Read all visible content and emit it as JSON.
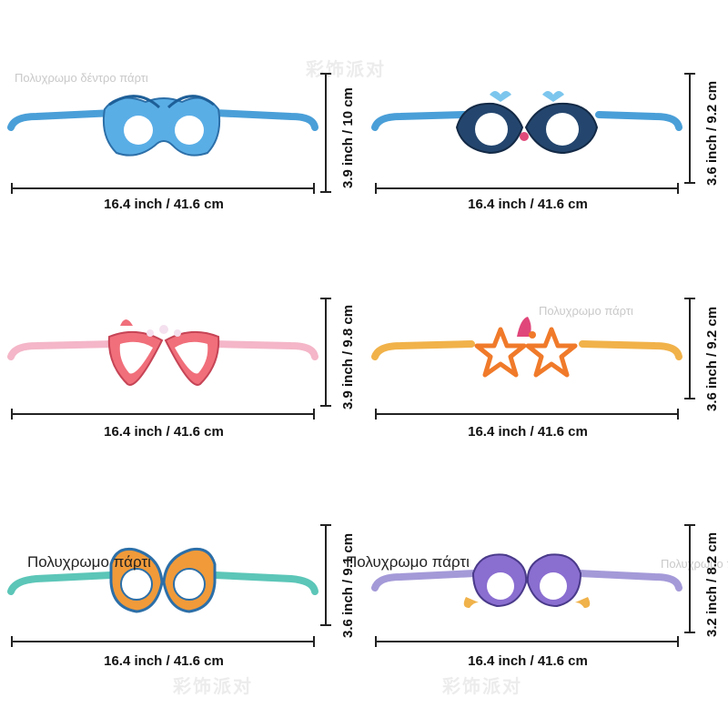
{
  "watermarks": {
    "party_tree": "Πολυχρωμο δέντρο πάρτι",
    "party": "Πολυχρωμο πάρτι",
    "brand": "彩饰派对"
  },
  "overlay_captions": [
    "Πολυχρωμο πάρτι",
    "Πολυχρωμο πάρτι"
  ],
  "items": [
    {
      "name": "dolphin-glasses",
      "width": "16.4 inch / 41.6 cm",
      "height": "3.9 inch / 10 cm",
      "color": "#4a9fd8"
    },
    {
      "name": "whale-glasses",
      "width": "16.4 inch / 41.6 cm",
      "height": "3.6 inch / 9.2 cm",
      "color": "#4a9fd8"
    },
    {
      "name": "seashell-glasses",
      "width": "16.4 inch / 41.6 cm",
      "height": "3.9 inch / 9.8 cm",
      "color": "#f4b6c8"
    },
    {
      "name": "starfish-glasses",
      "width": "16.4 inch / 41.6 cm",
      "height": "3.6 inch / 9.2 cm",
      "color": "#f1b24a"
    },
    {
      "name": "seahorse-glasses",
      "width": "16.4 inch / 41.6 cm",
      "height": "3.6 inch / 9.1 cm",
      "color": "#5cc6b8"
    },
    {
      "name": "fish-glasses",
      "width": "16.4 inch / 41.6 cm",
      "height": "3.2 inch / 8.2 cm",
      "color": "#a49ad8"
    }
  ]
}
